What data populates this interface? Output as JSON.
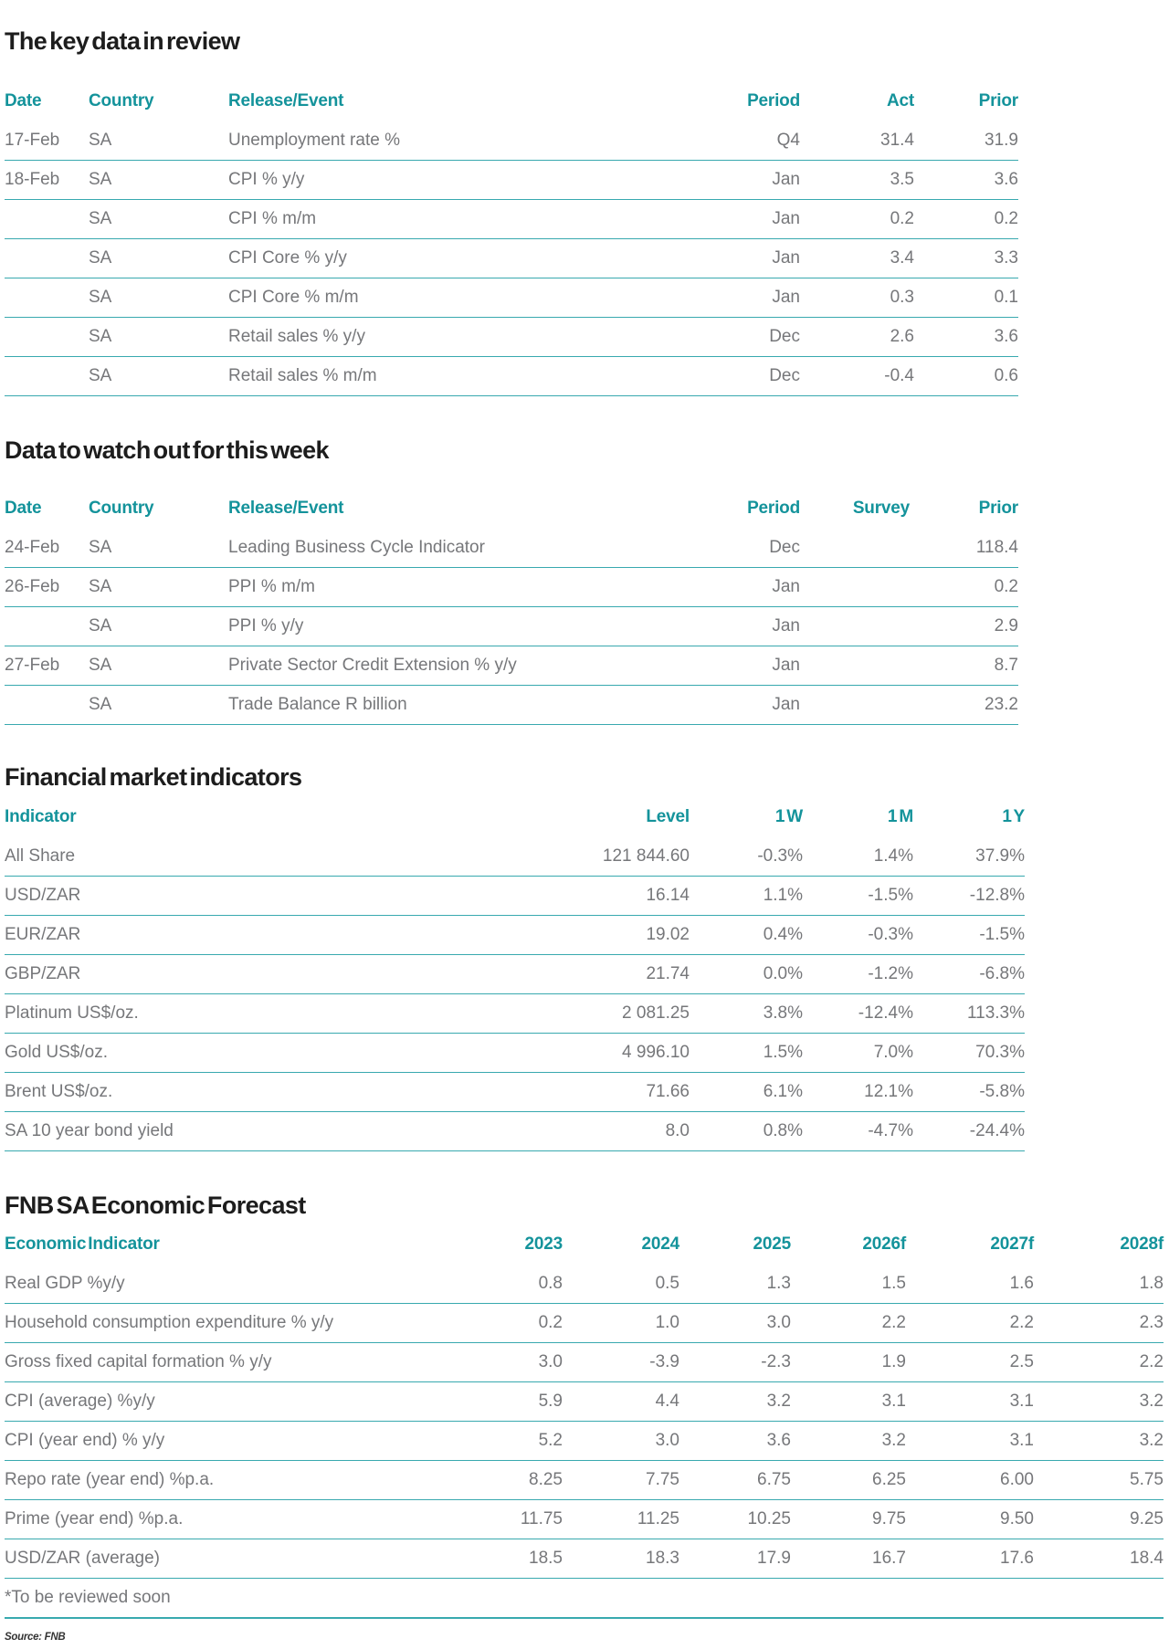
{
  "colors": {
    "accent_teal": "#14939B",
    "rule_teal": "#38A9AF",
    "title_text": "#1D1D1D",
    "body_text": "#76777A"
  },
  "key_data_review": {
    "title": "The key data in review",
    "columns": [
      "Date",
      "Country",
      "Release/Event",
      "Period",
      "Act",
      "Prior"
    ],
    "rows": [
      [
        "17-Feb",
        "SA",
        "Unemployment rate %",
        "Q4",
        "31.4",
        "31.9"
      ],
      [
        "18-Feb",
        "SA",
        "CPI % y/y",
        "Jan",
        "3.5",
        "3.6"
      ],
      [
        "",
        "SA",
        "CPI % m/m",
        "Jan",
        "0.2",
        "0.2"
      ],
      [
        "",
        "SA",
        "CPI Core % y/y",
        "Jan",
        "3.4",
        "3.3"
      ],
      [
        "",
        "SA",
        "CPI Core % m/m",
        "Jan",
        "0.3",
        "0.1"
      ],
      [
        "",
        "SA",
        "Retail sales % y/y",
        "Dec",
        "2.6",
        "3.6"
      ],
      [
        "",
        "SA",
        "Retail sales % m/m",
        "Dec",
        "-0.4",
        "0.6"
      ]
    ]
  },
  "data_to_watch": {
    "title": "Data to watch out for this week",
    "columns": [
      "Date",
      "Country",
      "Release/Event",
      "Period",
      "Survey",
      "Prior"
    ],
    "rows": [
      [
        "24-Feb",
        "SA",
        "Leading Business Cycle Indicator",
        "Dec",
        "",
        "118.4"
      ],
      [
        "26-Feb",
        "SA",
        "PPI % m/m",
        "Jan",
        "",
        "0.2"
      ],
      [
        "",
        "SA",
        "PPI % y/y",
        "Jan",
        "",
        "2.9"
      ],
      [
        "27-Feb",
        "SA",
        "Private Sector Credit Extension % y/y",
        "Jan",
        "",
        "8.7"
      ],
      [
        "",
        "SA",
        "Trade Balance R billion",
        "Jan",
        "",
        "23.2"
      ]
    ]
  },
  "market_indicators": {
    "title": "Financial market indicators",
    "columns": [
      "Indicator",
      "Level",
      "1 W",
      "1 M",
      "1 Y"
    ],
    "rows": [
      [
        "All Share",
        "121 844.60",
        "-0.3%",
        "1.4%",
        "37.9%"
      ],
      [
        "USD/ZAR",
        "16.14",
        "1.1%",
        "-1.5%",
        "-12.8%"
      ],
      [
        "EUR/ZAR",
        "19.02",
        "0.4%",
        "-0.3%",
        "-1.5%"
      ],
      [
        "GBP/ZAR",
        "21.74",
        "0.0%",
        "-1.2%",
        "-6.8%"
      ],
      [
        "Platinum US$/oz.",
        "2 081.25",
        "3.8%",
        "-12.4%",
        "113.3%"
      ],
      [
        "Gold US$/oz.",
        "4 996.10",
        "1.5%",
        "7.0%",
        "70.3%"
      ],
      [
        "Brent US$/oz.",
        "71.66",
        "6.1%",
        "12.1%",
        "-5.8%"
      ],
      [
        "SA 10 year bond yield",
        "8.0",
        "0.8%",
        "-4.7%",
        "-24.4%"
      ]
    ]
  },
  "forecast": {
    "title": "FNB SA Economic Forecast",
    "columns": [
      "Economic Indicator",
      "2023",
      "2024",
      "2025",
      "2026f",
      "2027f",
      "2028f"
    ],
    "rows": [
      [
        "Real GDP %y/y",
        "0.8",
        "0.5",
        "1.3",
        "1.5",
        "1.6",
        "1.8"
      ],
      [
        "Household consumption expenditure % y/y",
        "0.2",
        "1.0",
        "3.0",
        "2.2",
        "2.2",
        "2.3"
      ],
      [
        "Gross fixed capital formation % y/y",
        "3.0",
        "-3.9",
        "-2.3",
        "1.9",
        "2.5",
        "2.2"
      ],
      [
        "CPI (average) %y/y",
        "5.9",
        "4.4",
        "3.2",
        "3.1",
        "3.1",
        "3.2"
      ],
      [
        "CPI (year end) % y/y",
        "5.2",
        "3.0",
        "3.6",
        "3.2",
        "3.1",
        "3.2"
      ],
      [
        "Repo rate (year end) %p.a.",
        "8.25",
        "7.75",
        "6.75",
        "6.25",
        "6.00",
        "5.75"
      ],
      [
        "Prime (year end) %p.a.",
        "11.75",
        "11.25",
        "10.25",
        "9.75",
        "9.50",
        "9.25"
      ],
      [
        "USD/ZAR (average)",
        "18.5",
        "18.3",
        "17.9",
        "16.7",
        "17.6",
        "18.4"
      ]
    ],
    "footnote": "*To be reviewed soon"
  },
  "source": "Source: FNB"
}
